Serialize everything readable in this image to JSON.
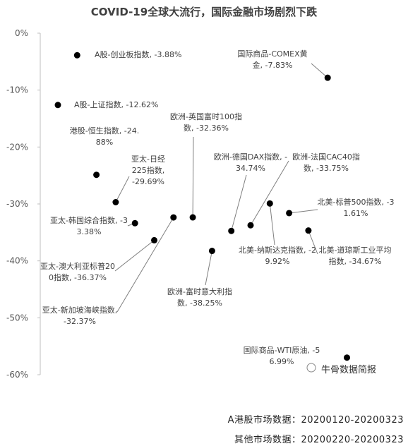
{
  "chart_data": {
    "type": "scatter",
    "title": "COVID-19全球大流行，国际金融市场剧烈下跌",
    "watermark": "牛骨数据简报",
    "footnotes": [
      "A港股市场数据：20200120-20200323",
      "其他市场数据：20200220-20200323"
    ],
    "color": "#000000",
    "ylim": [
      -60,
      0
    ],
    "yticks": [
      {
        "value": 0,
        "label": "0%"
      },
      {
        "value": -10,
        "label": "-10%"
      },
      {
        "value": -20,
        "label": "-20%"
      },
      {
        "value": -30,
        "label": "-30%"
      },
      {
        "value": -40,
        "label": "-40%"
      },
      {
        "value": -50,
        "label": "-50%"
      },
      {
        "value": -60,
        "label": "-60%"
      }
    ],
    "xlim": [
      0,
      19
    ],
    "x": [
      1,
      2,
      3,
      4,
      5,
      6,
      7,
      8,
      9,
      10,
      11,
      12,
      13,
      14,
      15,
      16
    ],
    "names": [
      "A股-上证指数,",
      "A股-创业板指数,",
      "港股-恒生指数,",
      "亚太-日经225指数,",
      "亚太-韩国综合指数,",
      "亚太-澳大利亚标普200指数,",
      "亚太-新加坡海峡指数,",
      "欧洲-英国富时100指数,",
      "欧洲-富时意大利指数,",
      "欧洲-德国DAX指数,",
      "欧洲-法国CAC40指数,",
      "北美-纳斯达克指数,",
      "北美-标普500指数,",
      "北美-道琼斯工业平均指数,",
      "国际商品-COMEX黄金,",
      "国际商品-WTI原油,"
    ],
    "values": [
      -12.62,
      -3.88,
      -24.88,
      -29.69,
      -33.38,
      -36.37,
      -32.37,
      -32.36,
      -38.25,
      -34.74,
      -33.75,
      -29.92,
      -31.61,
      -34.67,
      -7.83,
      -56.99
    ],
    "value_labels": [
      "-12.62%",
      "-3.88%",
      "-24.88%",
      "-29.69%",
      "-33.38%",
      "-36.37%",
      "-32.37%",
      "-32.36%",
      "-38.25%",
      "-34.74%",
      "-33.75%",
      "-29.92%",
      "-31.61%",
      "-34.67%",
      "-7.83%",
      "-56.99%"
    ]
  }
}
